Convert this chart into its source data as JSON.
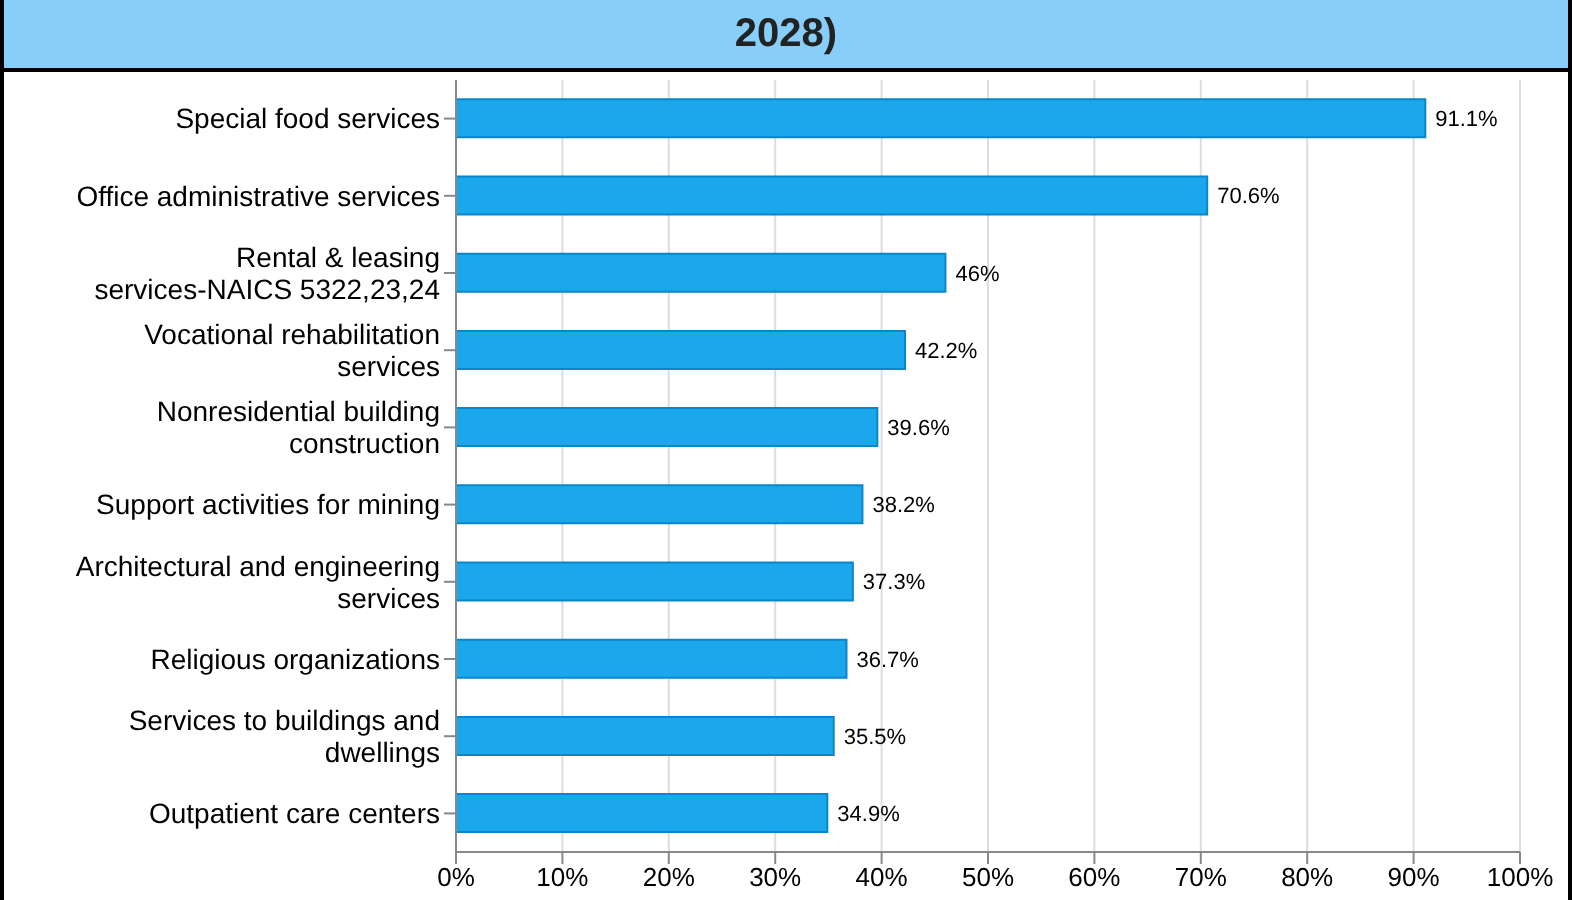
{
  "chart_data": {
    "type": "bar",
    "orientation": "horizontal",
    "title": "2028)",
    "categories": [
      "Special food services",
      "Office administrative services",
      "Rental & leasing services-NAICS 5322,23,24",
      "Vocational rehabilitation services",
      "Nonresidential building construction",
      "Support activities for mining",
      "Architectural and engineering services",
      "Religious organizations",
      "Services to buildings and dwellings",
      "Outpatient care centers"
    ],
    "values": [
      91.1,
      70.6,
      46,
      42.2,
      39.6,
      38.2,
      37.3,
      36.7,
      35.5,
      34.9
    ],
    "value_labels": [
      "91.1%",
      "70.6%",
      "46%",
      "42.2%",
      "39.6%",
      "38.2%",
      "37.3%",
      "36.7%",
      "35.5%",
      "34.9%"
    ],
    "color": "#1aa7ec",
    "xlim": [
      0,
      100
    ],
    "xticks": [
      {
        "value": 0,
        "label": "0%"
      },
      {
        "value": 10,
        "label": "10%"
      },
      {
        "value": 20,
        "label": "20%"
      },
      {
        "value": 30,
        "label": "30%"
      },
      {
        "value": 40,
        "label": "40%"
      },
      {
        "value": 50,
        "label": "50%"
      },
      {
        "value": 60,
        "label": "60%"
      },
      {
        "value": 70,
        "label": "70%"
      },
      {
        "value": 80,
        "label": "80%"
      },
      {
        "value": 90,
        "label": "90%"
      },
      {
        "value": 100,
        "label": "100%"
      }
    ],
    "grid": "x"
  }
}
